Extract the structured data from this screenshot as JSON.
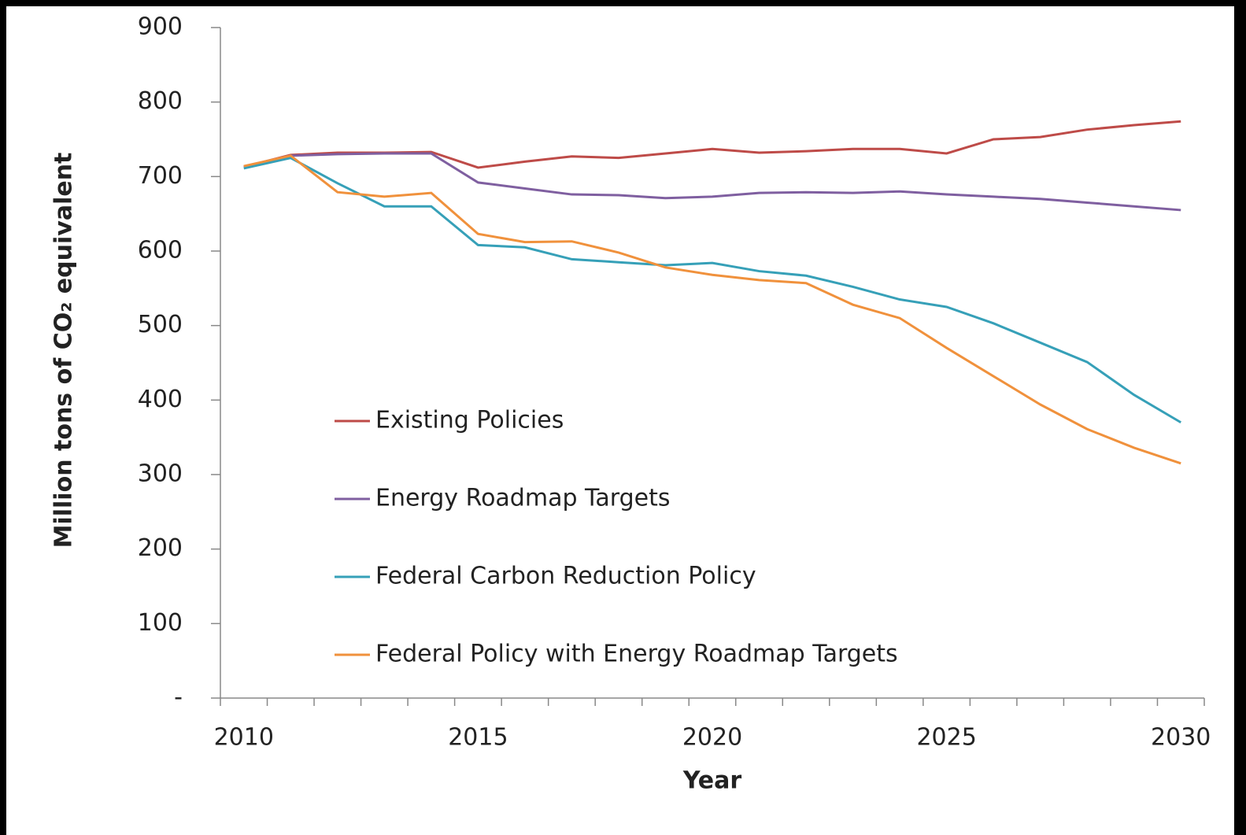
{
  "chart_data": {
    "type": "line",
    "y_label": "Million tons of CO₂ equivalent",
    "x_label": "Year",
    "categories": [
      "2010",
      null,
      null,
      null,
      null,
      "2015",
      null,
      null,
      null,
      null,
      "2020",
      null,
      null,
      null,
      null,
      "2025",
      null,
      null,
      null,
      null,
      "2030"
    ],
    "ylim": [
      0,
      900
    ],
    "yticks": [
      {
        "value": 0,
        "label": "-"
      },
      100,
      200,
      300,
      400,
      500,
      600,
      700,
      800,
      900
    ],
    "legend": "left",
    "series": [
      {
        "name": "Existing Policies",
        "color": "#be4b48",
        "values": [
          713,
          729,
          732,
          732,
          733,
          712,
          720,
          727,
          725,
          731,
          737,
          732,
          734,
          737,
          737,
          731,
          750,
          753,
          763,
          769,
          774
        ]
      },
      {
        "name": "Energy Roadmap Targets",
        "color": "#7f5fa0",
        "values": [
          713,
          728,
          730,
          731,
          731,
          692,
          684,
          676,
          675,
          671,
          673,
          678,
          679,
          678,
          680,
          676,
          673,
          670,
          665,
          660,
          655
        ]
      },
      {
        "name": "Federal Carbon Reduction Policy",
        "color": "#36a0b8",
        "values": [
          711,
          725,
          691,
          660,
          660,
          608,
          605,
          589,
          585,
          581,
          584,
          573,
          567,
          552,
          535,
          525,
          503,
          477,
          451,
          407,
          370
        ]
      },
      {
        "name": "Federal Policy with Energy Roadmap Targets",
        "color": "#f0913c",
        "values": [
          714,
          728,
          679,
          673,
          678,
          623,
          612,
          613,
          598,
          578,
          568,
          561,
          557,
          528,
          510,
          470,
          432,
          394,
          361,
          336,
          315
        ]
      }
    ]
  }
}
